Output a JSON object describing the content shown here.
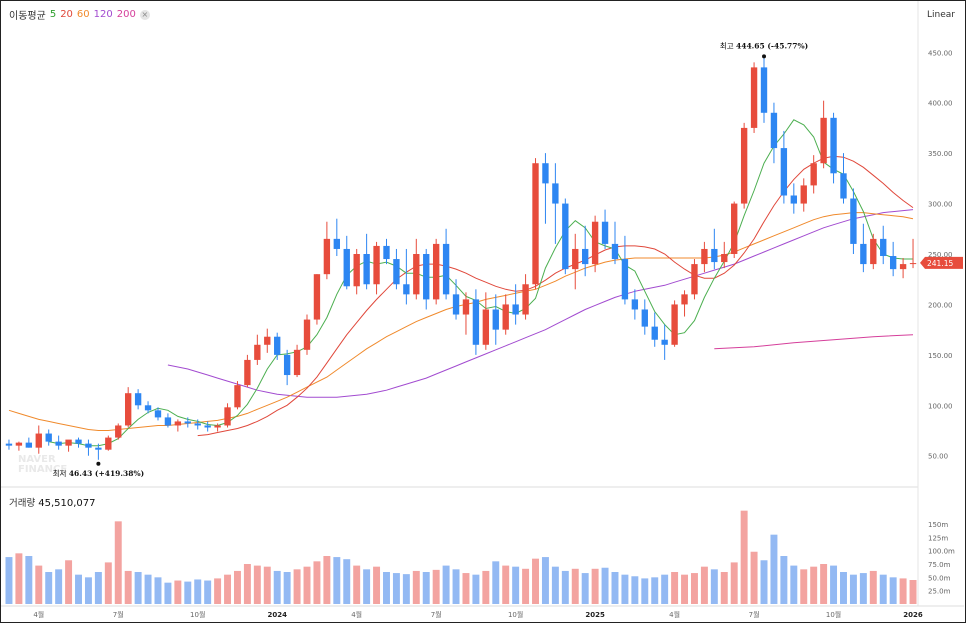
{
  "legend": {
    "name": "이동평균",
    "p5": "5",
    "p20": "20",
    "p60": "60",
    "p120": "120",
    "p200": "200",
    "close": "×"
  },
  "scale_label": "Linear",
  "volume": {
    "label": "거래량",
    "value": "45,510,077"
  },
  "current_price": "241.15",
  "high_annotation": {
    "label": "최고",
    "value": "444.65 (-45.77%)"
  },
  "low_annotation": {
    "label": "최저",
    "value": "46.43 (+419.38%)"
  },
  "watermark": [
    "NAVER",
    "FINANCE"
  ],
  "colors": {
    "up": "#e74c3c",
    "down": "#2d86f2",
    "vol_up": "#f3a3a0",
    "vol_down": "#93b9f3",
    "ma5": "#4caf50",
    "ma20": "#e0483b",
    "ma60": "#f08a2c",
    "ma120": "#a24bd0",
    "ma200": "#d53f9b"
  },
  "chart_data": {
    "type": "candlestick",
    "title": "이동평균 5 20 60 120 200",
    "y_ticks": [
      "450.00",
      "400.00",
      "350.00",
      "300.00",
      "250.00",
      "200.00",
      "150.00",
      "100.00",
      "50.00"
    ],
    "y_tick_values": [
      450,
      400,
      350,
      300,
      250,
      200,
      150,
      100,
      50
    ],
    "ylim": [
      20,
      480
    ],
    "vol_ticks": [
      "150m",
      "125m",
      "100.0m",
      "75.0m",
      "50.0m",
      "25.0m"
    ],
    "vol_tick_values": [
      150,
      125,
      100,
      75,
      50,
      25
    ],
    "vol_max": 180,
    "x_ticks": [
      {
        "label": "4월",
        "i": 3,
        "bold": false
      },
      {
        "label": "7월",
        "i": 11,
        "bold": false
      },
      {
        "label": "10월",
        "i": 19,
        "bold": false
      },
      {
        "label": "2024",
        "i": 27,
        "bold": true
      },
      {
        "label": "4월",
        "i": 35,
        "bold": false
      },
      {
        "label": "7월",
        "i": 43,
        "bold": false
      },
      {
        "label": "10월",
        "i": 51,
        "bold": false
      },
      {
        "label": "2025",
        "i": 59,
        "bold": true
      },
      {
        "label": "4월",
        "i": 67,
        "bold": false
      },
      {
        "label": "7월",
        "i": 75,
        "bold": false
      },
      {
        "label": "10월",
        "i": 83,
        "bold": false
      },
      {
        "label": "2026",
        "i": 91,
        "bold": true
      }
    ],
    "candles": [
      [
        62,
        66,
        56,
        60
      ],
      [
        60,
        64,
        55,
        63
      ],
      [
        63,
        68,
        58,
        58
      ],
      [
        58,
        80,
        52,
        72
      ],
      [
        72,
        76,
        60,
        64
      ],
      [
        64,
        70,
        56,
        60
      ],
      [
        60,
        64,
        54,
        66
      ],
      [
        66,
        68,
        58,
        62
      ],
      [
        62,
        66,
        50,
        58
      ],
      [
        58,
        62,
        46,
        56
      ],
      [
        56,
        70,
        55,
        68
      ],
      [
        68,
        82,
        66,
        80
      ],
      [
        80,
        118,
        78,
        112
      ],
      [
        112,
        116,
        96,
        100
      ],
      [
        100,
        104,
        92,
        95
      ],
      [
        95,
        98,
        85,
        88
      ],
      [
        88,
        92,
        78,
        80
      ],
      [
        80,
        86,
        74,
        84
      ],
      [
        84,
        88,
        78,
        82
      ],
      [
        82,
        86,
        76,
        80
      ],
      [
        80,
        84,
        74,
        78
      ],
      [
        78,
        82,
        74,
        80
      ],
      [
        80,
        102,
        78,
        98
      ],
      [
        98,
        124,
        96,
        120
      ],
      [
        120,
        150,
        118,
        145
      ],
      [
        145,
        170,
        140,
        160
      ],
      [
        160,
        176,
        152,
        168
      ],
      [
        168,
        172,
        145,
        150
      ],
      [
        150,
        155,
        120,
        130
      ],
      [
        130,
        160,
        128,
        155
      ],
      [
        155,
        190,
        150,
        185
      ],
      [
        185,
        230,
        180,
        230
      ],
      [
        230,
        282,
        225,
        265
      ],
      [
        265,
        285,
        248,
        255
      ],
      [
        255,
        268,
        215,
        218
      ],
      [
        218,
        255,
        210,
        250
      ],
      [
        250,
        270,
        215,
        220
      ],
      [
        220,
        262,
        210,
        258
      ],
      [
        258,
        265,
        240,
        245
      ],
      [
        245,
        255,
        215,
        220
      ],
      [
        220,
        255,
        200,
        210
      ],
      [
        210,
        265,
        205,
        250
      ],
      [
        250,
        255,
        195,
        205
      ],
      [
        205,
        265,
        200,
        260
      ],
      [
        260,
        275,
        205,
        210
      ],
      [
        210,
        225,
        185,
        190
      ],
      [
        190,
        212,
        170,
        205
      ],
      [
        205,
        215,
        150,
        160
      ],
      [
        160,
        212,
        155,
        195
      ],
      [
        195,
        210,
        160,
        175
      ],
      [
        175,
        210,
        170,
        200
      ],
      [
        200,
        220,
        180,
        190
      ],
      [
        190,
        230,
        185,
        220
      ],
      [
        220,
        345,
        215,
        340
      ],
      [
        340,
        350,
        280,
        320
      ],
      [
        320,
        340,
        260,
        300
      ],
      [
        300,
        305,
        230,
        235
      ],
      [
        235,
        270,
        215,
        255
      ],
      [
        255,
        278,
        228,
        240
      ],
      [
        240,
        288,
        232,
        282
      ],
      [
        282,
        294,
        255,
        260
      ],
      [
        260,
        282,
        240,
        245
      ],
      [
        245,
        268,
        200,
        205
      ],
      [
        205,
        215,
        185,
        195
      ],
      [
        195,
        205,
        170,
        178
      ],
      [
        178,
        192,
        158,
        165
      ],
      [
        165,
        180,
        145,
        160
      ],
      [
        160,
        204,
        158,
        200
      ],
      [
        200,
        214,
        188,
        210
      ],
      [
        210,
        245,
        205,
        240
      ],
      [
        240,
        262,
        232,
        255
      ],
      [
        255,
        275,
        235,
        242
      ],
      [
        242,
        262,
        236,
        250
      ],
      [
        250,
        302,
        246,
        300
      ],
      [
        300,
        380,
        295,
        375
      ],
      [
        375,
        440,
        370,
        435
      ],
      [
        435,
        444,
        380,
        390
      ],
      [
        390,
        400,
        340,
        355
      ],
      [
        355,
        372,
        300,
        308
      ],
      [
        308,
        320,
        290,
        300
      ],
      [
        300,
        325,
        292,
        318
      ],
      [
        318,
        348,
        310,
        340
      ],
      [
        340,
        402,
        335,
        385
      ],
      [
        385,
        390,
        320,
        330
      ],
      [
        330,
        350,
        300,
        305
      ],
      [
        305,
        315,
        250,
        260
      ],
      [
        260,
        280,
        232,
        240
      ],
      [
        240,
        270,
        235,
        265
      ],
      [
        265,
        278,
        240,
        248
      ],
      [
        248,
        262,
        228,
        235
      ],
      [
        235,
        246,
        226,
        240
      ],
      [
        240,
        265,
        236,
        241
      ]
    ],
    "volume": [
      88,
      95,
      90,
      72,
      60,
      65,
      82,
      55,
      50,
      60,
      78,
      155,
      62,
      60,
      55,
      50,
      40,
      44,
      42,
      46,
      44,
      48,
      55,
      62,
      75,
      72,
      70,
      62,
      60,
      65,
      70,
      80,
      90,
      88,
      84,
      72,
      65,
      70,
      60,
      58,
      56,
      62,
      60,
      64,
      72,
      65,
      58,
      55,
      62,
      80,
      72,
      70,
      66,
      85,
      88,
      70,
      62,
      66,
      58,
      66,
      68,
      60,
      55,
      52,
      48,
      50,
      55,
      60,
      55,
      58,
      70,
      65,
      60,
      78,
      175,
      98,
      82,
      130,
      90,
      72,
      65,
      70,
      75,
      72,
      60,
      55,
      58,
      62,
      55,
      50,
      48,
      45
    ],
    "ma5": [
      null,
      null,
      null,
      null,
      64,
      62,
      63,
      62,
      60,
      60,
      62,
      67,
      77,
      86,
      93,
      97,
      95,
      89,
      86,
      84,
      81,
      80,
      83,
      90,
      101,
      117,
      136,
      150,
      151,
      153,
      158,
      170,
      187,
      210,
      229,
      238,
      243,
      240,
      242,
      238,
      231,
      231,
      227,
      227,
      229,
      219,
      208,
      204,
      196,
      198,
      193,
      191,
      196,
      206,
      236,
      256,
      273,
      283,
      276,
      262,
      258,
      255,
      239,
      233,
      213,
      193,
      180,
      170,
      172,
      184,
      207,
      226,
      243,
      261,
      288,
      313,
      340,
      357,
      369,
      383,
      378,
      366,
      341,
      334,
      329,
      312,
      292,
      265,
      250,
      246,
      245,
      245
    ],
    "ma20": [
      null,
      null,
      null,
      null,
      null,
      null,
      null,
      null,
      null,
      null,
      null,
      null,
      null,
      null,
      null,
      null,
      null,
      null,
      null,
      70,
      71,
      73,
      75,
      77,
      80,
      84,
      89,
      95,
      100,
      108,
      117,
      128,
      142,
      156,
      170,
      182,
      194,
      205,
      215,
      225,
      232,
      238,
      240,
      240,
      238,
      235,
      231,
      226,
      222,
      218,
      215,
      213,
      214,
      218,
      224,
      231,
      236,
      240,
      244,
      249,
      254,
      257,
      258,
      258,
      257,
      255,
      250,
      242,
      235,
      229,
      226,
      226,
      231,
      239,
      251,
      265,
      282,
      298,
      312,
      324,
      334,
      340,
      345,
      347,
      346,
      342,
      336,
      328,
      320,
      311,
      303,
      296
    ],
    "ma60": [
      95,
      92,
      89,
      86,
      84,
      82,
      80,
      78,
      76,
      75,
      75,
      76,
      77,
      78,
      79,
      80,
      80,
      81,
      82,
      83,
      84,
      85,
      87,
      89,
      92,
      96,
      100,
      104,
      108,
      113,
      118,
      123,
      128,
      135,
      142,
      149,
      156,
      162,
      168,
      173,
      178,
      183,
      187,
      191,
      195,
      198,
      200,
      202,
      205,
      207,
      209,
      211,
      213,
      215,
      219,
      223,
      228,
      232,
      236,
      239,
      242,
      244,
      245,
      246,
      246,
      246,
      246,
      246,
      246,
      246,
      246,
      247,
      249,
      252,
      256,
      260,
      264,
      268,
      272,
      276,
      280,
      284,
      287,
      289,
      290,
      291,
      291,
      290,
      289,
      288,
      287,
      285
    ],
    "ma120": [
      null,
      null,
      null,
      null,
      null,
      null,
      null,
      null,
      null,
      null,
      null,
      null,
      null,
      null,
      null,
      null,
      140,
      138,
      136,
      133,
      130,
      127,
      124,
      121,
      118,
      115,
      113,
      111,
      110,
      109,
      108,
      108,
      108,
      108,
      109,
      110,
      111,
      113,
      115,
      118,
      121,
      124,
      127,
      131,
      135,
      139,
      143,
      147,
      151,
      155,
      159,
      163,
      167,
      171,
      175,
      180,
      185,
      190,
      195,
      199,
      203,
      207,
      210,
      213,
      215,
      217,
      219,
      222,
      225,
      228,
      231,
      234,
      237,
      240,
      244,
      248,
      252,
      256,
      260,
      264,
      268,
      272,
      276,
      279,
      282,
      285,
      287,
      289,
      291,
      292,
      293,
      294
    ],
    "ma200": [
      null,
      null,
      null,
      null,
      null,
      null,
      null,
      null,
      null,
      null,
      null,
      null,
      null,
      null,
      null,
      null,
      null,
      null,
      null,
      null,
      null,
      null,
      null,
      null,
      null,
      null,
      null,
      null,
      null,
      null,
      null,
      null,
      null,
      null,
      null,
      null,
      null,
      null,
      null,
      null,
      null,
      null,
      null,
      null,
      null,
      null,
      null,
      null,
      null,
      null,
      null,
      null,
      null,
      null,
      null,
      null,
      null,
      null,
      null,
      null,
      null,
      null,
      null,
      null,
      null,
      null,
      null,
      null,
      null,
      null,
      null,
      null,
      null,
      null,
      null,
      null,
      null,
      null,
      null,
      null,
      null,
      null,
      null,
      null,
      null,
      null,
      null,
      null,
      null,
      null,
      null,
      null
    ],
    "ma200_series": [
      {
        "i": 71,
        "v": 156
      },
      {
        "i": 75,
        "v": 158
      },
      {
        "i": 79,
        "v": 162
      },
      {
        "i": 83,
        "v": 165
      },
      {
        "i": 87,
        "v": 168
      },
      {
        "i": 91,
        "v": 170
      }
    ]
  }
}
